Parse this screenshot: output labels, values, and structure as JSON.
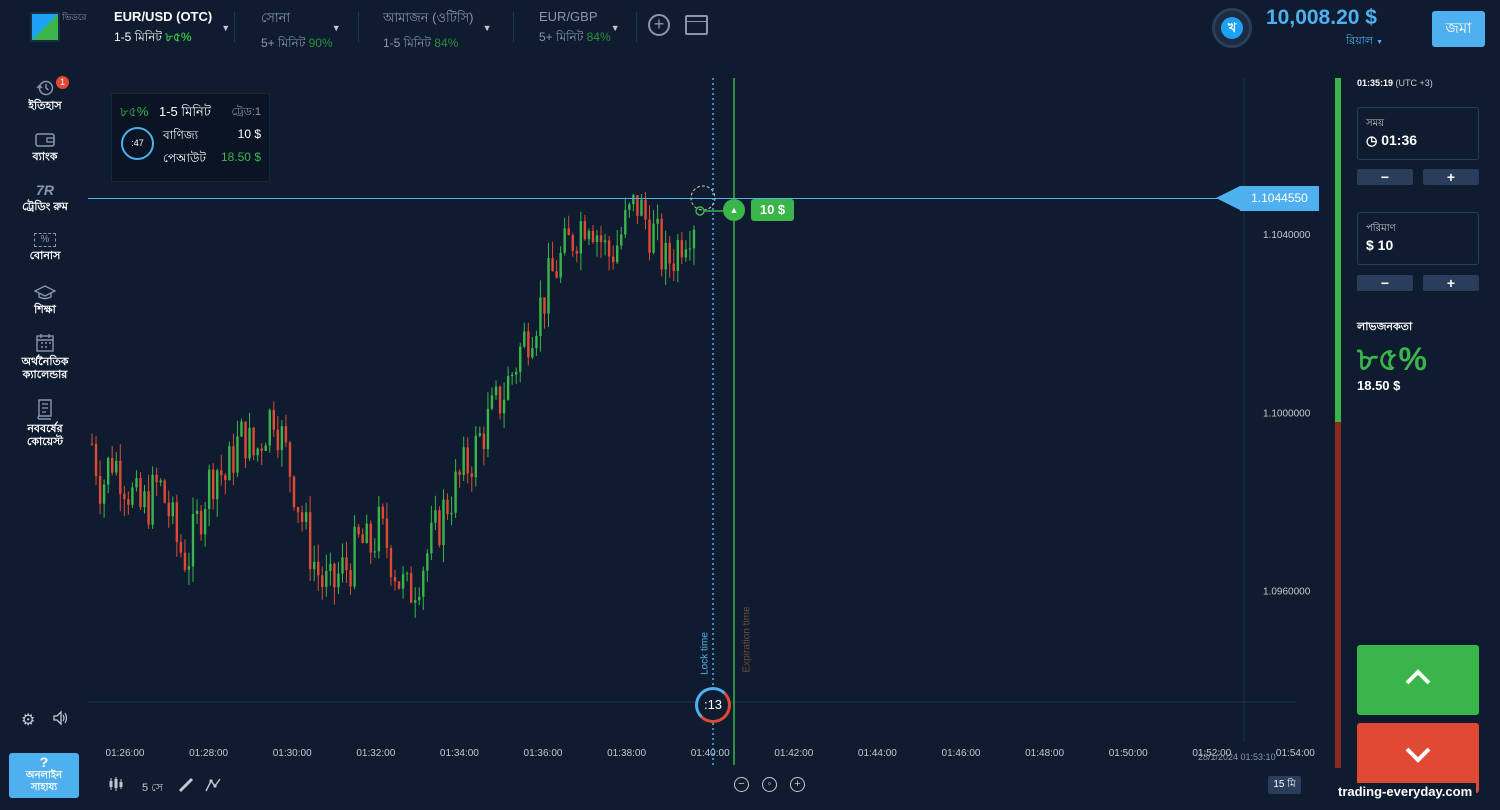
{
  "brand": {
    "logo_text": "ভিডরে"
  },
  "assets": [
    {
      "name": "EUR/USD (OTC)",
      "duration": "1-5 মিনিট",
      "payout": "৮৫%",
      "active": true
    },
    {
      "name": "সোনা",
      "duration": "5+ মিনিট",
      "payout": "90%",
      "active": false
    },
    {
      "name": "আমাজন (ওটিসি)",
      "duration": "1-5 মিনিট",
      "payout": "84%",
      "active": false
    },
    {
      "name": "EUR/GBP",
      "duration": "5+ মিনিট",
      "payout": "84%",
      "active": false
    }
  ],
  "account": {
    "avatar_letter": "খ",
    "balance": "10,008.20 $",
    "currency": "রিয়াল",
    "deposit_label": "জমা"
  },
  "nav": {
    "history": "ইতিহাস",
    "history_badge": "1",
    "bank": "ব্যাংক",
    "trading_room_icon": "7R",
    "trading_room": "ট্রেডিং রুম",
    "bonus_icon": "%",
    "bonus": "বোনাস",
    "education": "শিক্ষা",
    "calendar_line1": "অর্থনৈতিক",
    "calendar_line2": "ক্যালেন্ডার",
    "quotes_line1": "নববর্ষের",
    "quotes_line2": "কোয়েস্ট"
  },
  "help": {
    "icon": "?",
    "line1": "অনলাইন",
    "line2": "সাহায্য"
  },
  "trade_box": {
    "payout": "৮৫%",
    "duration": "1-5 মিনিট",
    "trades": "ট্রেড:1",
    "countdown": ":47",
    "investment_label": "বাণিজ্য",
    "investment_value": "10 $",
    "payout_label": "পেআউট",
    "payout_value": "18.50 $"
  },
  "chart_data": {
    "type": "candlestick",
    "current_price": "1.1044550",
    "y_ticks": [
      "1.1040000",
      "1.1000000",
      "1.0960000"
    ],
    "y_tick_values": [
      1.104,
      1.1,
      1.096
    ],
    "x_ticks": [
      "01:26:00",
      "01:28:00",
      "01:30:00",
      "01:32:00",
      "01:34:00",
      "01:36:00",
      "01:38:00",
      "01:40:00",
      "01:42:00",
      "01:44:00",
      "01:46:00",
      "01:48:00",
      "01:50:00",
      "01:52:00",
      "01:54:00"
    ],
    "ylim": [
      1.0935,
      1.1075
    ],
    "timestamp": "28/1/2024 01:53:10",
    "deal_amount": "10 $",
    "lock_label": "Lock time",
    "expiration_label": "Expiration time",
    "timer": ":13",
    "close_path": [
      1.0993,
      1.0983,
      1.099,
      1.0987,
      1.0982,
      1.0978,
      1.098,
      1.0984,
      1.0978,
      1.097,
      1.0967,
      1.0975,
      1.0983,
      1.0988,
      1.0985,
      1.0992,
      1.0995,
      1.099,
      1.0996,
      1.1001,
      1.0993,
      1.0985,
      1.0976,
      1.0968,
      1.0962,
      1.096,
      1.0964,
      1.0966,
      1.0971,
      1.0969,
      1.0974,
      1.097,
      1.0963,
      1.0959,
      1.0963,
      1.0968,
      1.0973,
      1.0979,
      1.0983,
      1.0987,
      1.0991,
      1.0996,
      1.1,
      1.1004,
      1.1009,
      1.1015,
      1.102,
      1.1024,
      1.103,
      1.1034,
      1.1038,
      1.1042,
      1.1045,
      1.104,
      1.1035,
      1.1038,
      1.1043,
      1.1047,
      1.1043,
      1.1039,
      1.1033,
      1.1036,
      1.1041,
      1.1044
    ]
  },
  "bottom_toolbar": {
    "candles_icon": "candles-icon",
    "interval": "5 সে",
    "period": "15 মি"
  },
  "panel": {
    "clock": "01:35:19",
    "timezone": "(UTC +3)",
    "time_label": "সময়",
    "time_value": "01:36",
    "amount_label": "পরিমাণ",
    "amount_value": "$ 10",
    "minus": "−",
    "plus": "+",
    "profit_label": "লাভজনকতা",
    "profit_pct": "৮৫%",
    "profit_amount": "18.50 $"
  },
  "colors": {
    "up": "#39b54a",
    "down": "#e04a35",
    "accent": "#4fb0f0",
    "bg": "#0f1c30"
  },
  "watermark": "trading-everyday.com"
}
